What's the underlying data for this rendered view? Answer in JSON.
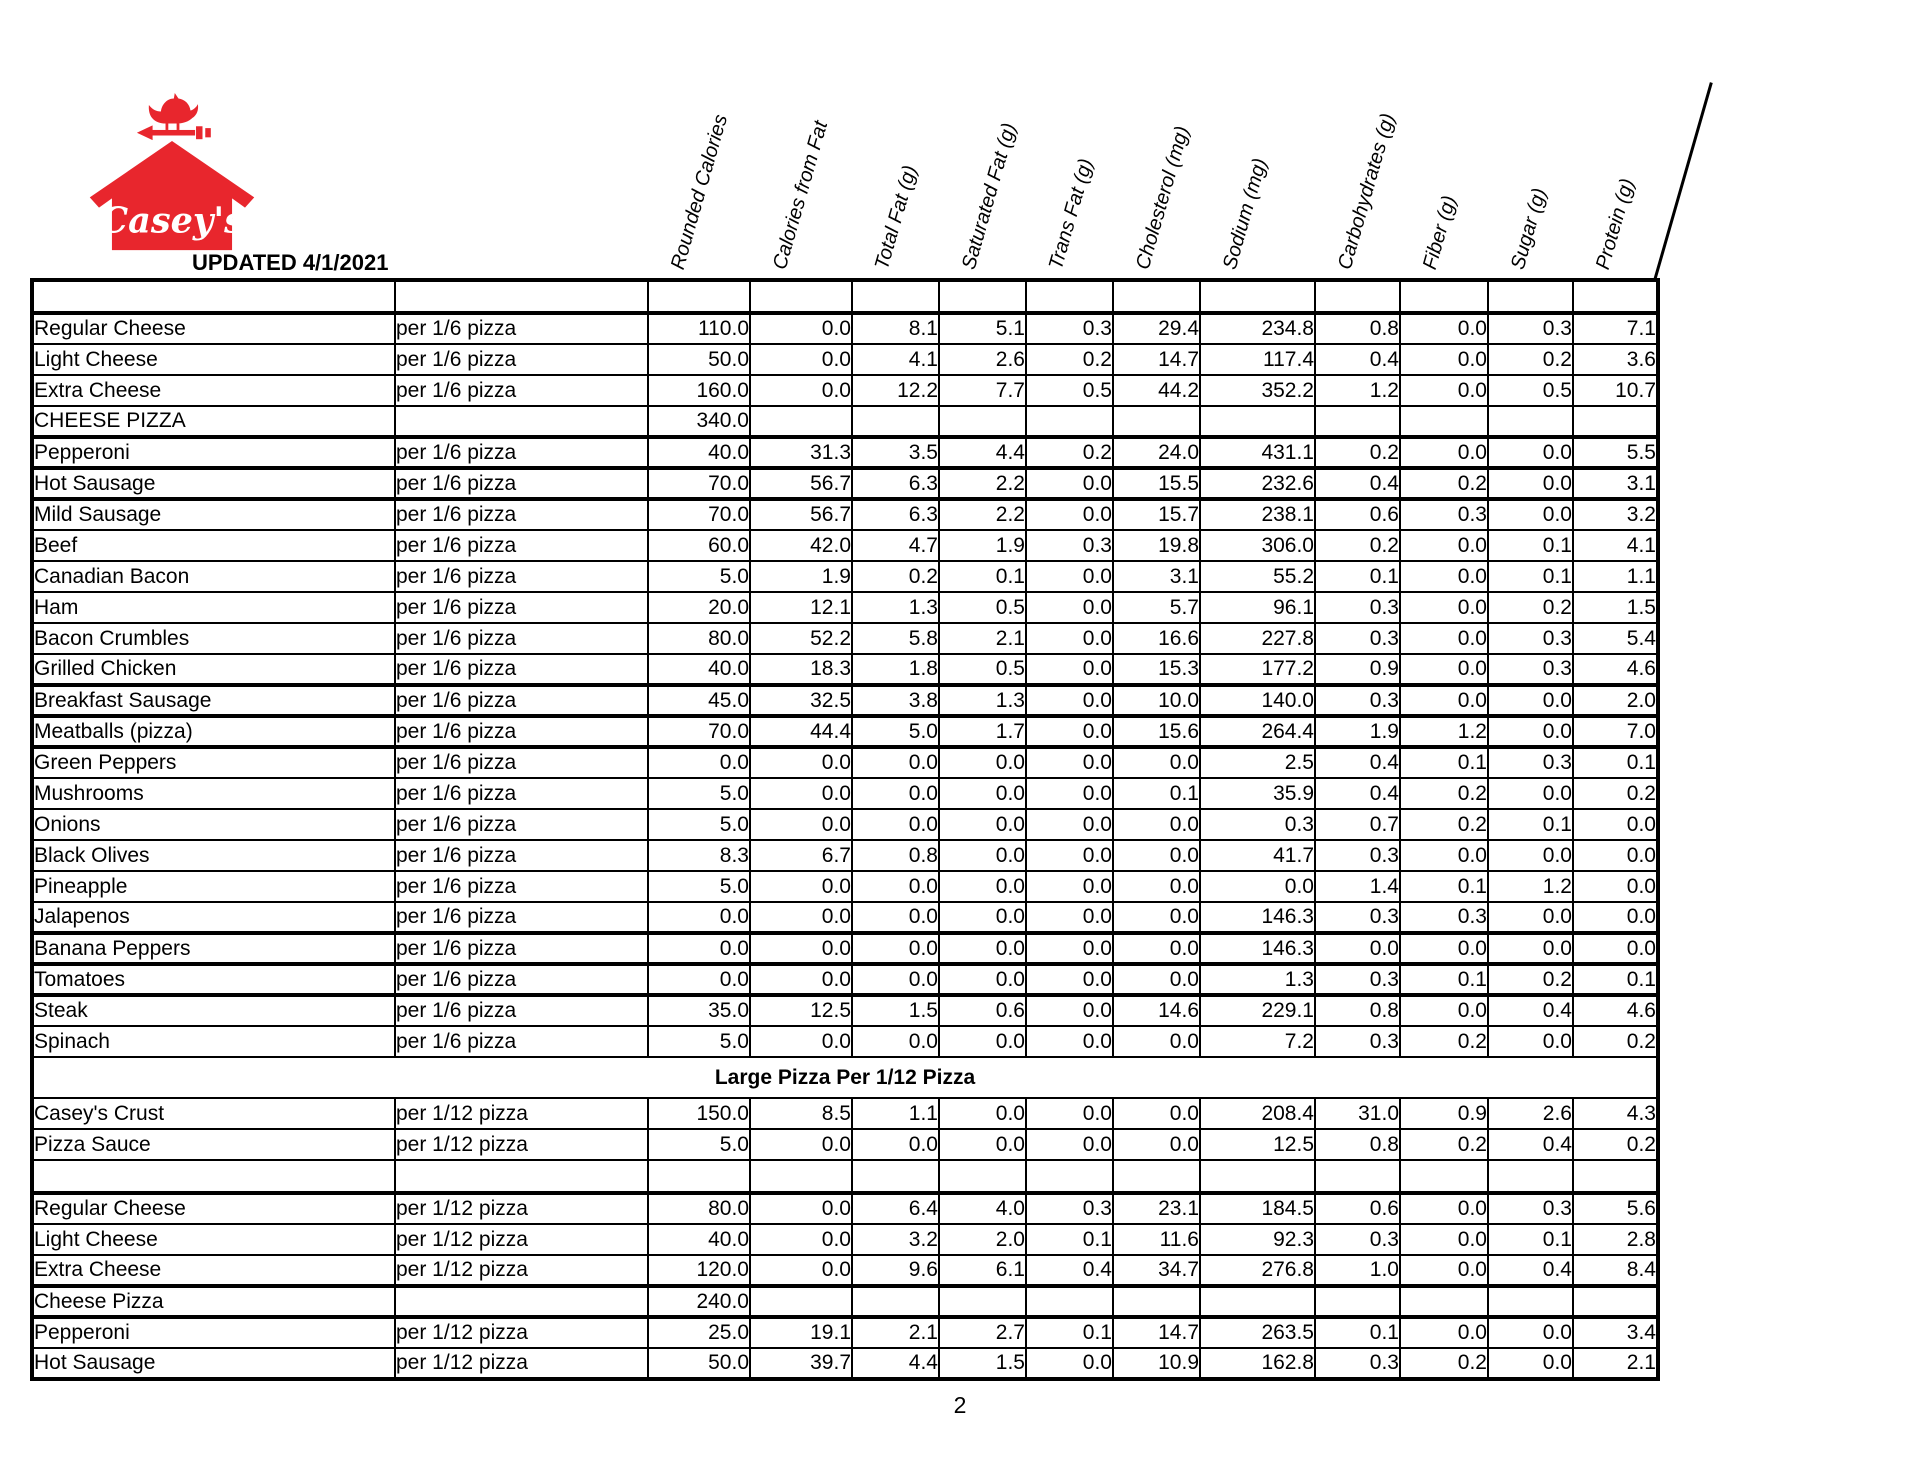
{
  "page": {
    "brand": "Casey's",
    "updated_label": "UPDATED 4/1/2021",
    "page_number": "2",
    "accent_color": "#e8262d",
    "border_color": "#000000"
  },
  "table": {
    "columns": [
      "Rounded Calories",
      "Calories from Fat",
      "Total Fat (g)",
      "Saturated Fat (g)",
      "Trans Fat (g)",
      "Cholesterol (mg)",
      "Sodium (mg)",
      "Carbohydrates (g)",
      "Fiber (g)",
      "Sugar (g)",
      "Protein (g)"
    ],
    "sections": [
      {
        "rows": [
          {
            "spacer": true,
            "name": "",
            "serving": "",
            "values": [
              "",
              "",
              "",
              "",
              "",
              "",
              "",
              "",
              "",
              "",
              ""
            ],
            "thick": true
          },
          {
            "name": "Regular Cheese",
            "serving": "per 1/6 pizza",
            "values": [
              "110.0",
              "0.0",
              "8.1",
              "5.1",
              "0.3",
              "29.4",
              "234.8",
              "0.8",
              "0.0",
              "0.3",
              "7.1"
            ]
          },
          {
            "name": "Light Cheese",
            "serving": "per 1/6 pizza",
            "values": [
              "50.0",
              "0.0",
              "4.1",
              "2.6",
              "0.2",
              "14.7",
              "117.4",
              "0.4",
              "0.0",
              "0.2",
              "3.6"
            ]
          },
          {
            "name": "Extra Cheese",
            "serving": "per 1/6 pizza",
            "values": [
              "160.0",
              "0.0",
              "12.2",
              "7.7",
              "0.5",
              "44.2",
              "352.2",
              "1.2",
              "0.0",
              "0.5",
              "10.7"
            ]
          },
          {
            "name": "CHEESE PIZZA",
            "serving": "",
            "values": [
              "340.0",
              "",
              "",
              "",
              "",
              "",
              "",
              "",
              "",
              "",
              ""
            ],
            "thick": true
          },
          {
            "name": "Pepperoni",
            "serving": "per 1/6 pizza",
            "values": [
              "40.0",
              "31.3",
              "3.5",
              "4.4",
              "0.2",
              "24.0",
              "431.1",
              "0.2",
              "0.0",
              "0.0",
              "5.5"
            ],
            "thick": true
          },
          {
            "name": "Hot Sausage",
            "serving": "per 1/6 pizza",
            "values": [
              "70.0",
              "56.7",
              "6.3",
              "2.2",
              "0.0",
              "15.5",
              "232.6",
              "0.4",
              "0.2",
              "0.0",
              "3.1"
            ],
            "thick": true
          },
          {
            "name": "Mild Sausage",
            "serving": "per 1/6 pizza",
            "values": [
              "70.0",
              "56.7",
              "6.3",
              "2.2",
              "0.0",
              "15.7",
              "238.1",
              "0.6",
              "0.3",
              "0.0",
              "3.2"
            ]
          },
          {
            "name": "Beef",
            "serving": "per 1/6 pizza",
            "values": [
              "60.0",
              "42.0",
              "4.7",
              "1.9",
              "0.3",
              "19.8",
              "306.0",
              "0.2",
              "0.0",
              "0.1",
              "4.1"
            ]
          },
          {
            "name": "Canadian Bacon",
            "serving": "per 1/6 pizza",
            "values": [
              "5.0",
              "1.9",
              "0.2",
              "0.1",
              "0.0",
              "3.1",
              "55.2",
              "0.1",
              "0.0",
              "0.1",
              "1.1"
            ]
          },
          {
            "name": "Ham",
            "serving": "per 1/6 pizza",
            "values": [
              "20.0",
              "12.1",
              "1.3",
              "0.5",
              "0.0",
              "5.7",
              "96.1",
              "0.3",
              "0.0",
              "0.2",
              "1.5"
            ]
          },
          {
            "name": "Bacon Crumbles",
            "serving": "per 1/6 pizza",
            "values": [
              "80.0",
              "52.2",
              "5.8",
              "2.1",
              "0.0",
              "16.6",
              "227.8",
              "0.3",
              "0.0",
              "0.3",
              "5.4"
            ]
          },
          {
            "name": "Grilled Chicken",
            "serving": "per 1/6 pizza",
            "values": [
              "40.0",
              "18.3",
              "1.8",
              "0.5",
              "0.0",
              "15.3",
              "177.2",
              "0.9",
              "0.0",
              "0.3",
              "4.6"
            ],
            "thick": true
          },
          {
            "name": "Breakfast Sausage",
            "serving": "per 1/6 pizza",
            "values": [
              "45.0",
              "32.5",
              "3.8",
              "1.3",
              "0.0",
              "10.0",
              "140.0",
              "0.3",
              "0.0",
              "0.0",
              "2.0"
            ],
            "thick": true
          },
          {
            "name": "Meatballs (pizza)",
            "serving": "per 1/6 pizza",
            "values": [
              "70.0",
              "44.4",
              "5.0",
              "1.7",
              "0.0",
              "15.6",
              "264.4",
              "1.9",
              "1.2",
              "0.0",
              "7.0"
            ],
            "thick": true
          },
          {
            "name": "Green Peppers",
            "serving": "per 1/6 pizza",
            "values": [
              "0.0",
              "0.0",
              "0.0",
              "0.0",
              "0.0",
              "0.0",
              "2.5",
              "0.4",
              "0.1",
              "0.3",
              "0.1"
            ]
          },
          {
            "name": "Mushrooms",
            "serving": "per 1/6 pizza",
            "values": [
              "5.0",
              "0.0",
              "0.0",
              "0.0",
              "0.0",
              "0.1",
              "35.9",
              "0.4",
              "0.2",
              "0.0",
              "0.2"
            ]
          },
          {
            "name": "Onions",
            "serving": "per 1/6 pizza",
            "values": [
              "5.0",
              "0.0",
              "0.0",
              "0.0",
              "0.0",
              "0.0",
              "0.3",
              "0.7",
              "0.2",
              "0.1",
              "0.0"
            ]
          },
          {
            "name": "Black Olives",
            "serving": "per 1/6 pizza",
            "values": [
              "8.3",
              "6.7",
              "0.8",
              "0.0",
              "0.0",
              "0.0",
              "41.7",
              "0.3",
              "0.0",
              "0.0",
              "0.0"
            ]
          },
          {
            "name": "Pineapple",
            "serving": "per 1/6 pizza",
            "values": [
              "5.0",
              "0.0",
              "0.0",
              "0.0",
              "0.0",
              "0.0",
              "0.0",
              "1.4",
              "0.1",
              "1.2",
              "0.0"
            ]
          },
          {
            "name": "Jalapenos",
            "serving": "per 1/6 pizza",
            "values": [
              "0.0",
              "0.0",
              "0.0",
              "0.0",
              "0.0",
              "0.0",
              "146.3",
              "0.3",
              "0.3",
              "0.0",
              "0.0"
            ],
            "thick": true
          },
          {
            "name": "Banana Peppers",
            "serving": "per 1/6 pizza",
            "values": [
              "0.0",
              "0.0",
              "0.0",
              "0.0",
              "0.0",
              "0.0",
              "146.3",
              "0.0",
              "0.0",
              "0.0",
              "0.0"
            ],
            "thick": true
          },
          {
            "name": "Tomatoes",
            "serving": "per 1/6 pizza",
            "values": [
              "0.0",
              "0.0",
              "0.0",
              "0.0",
              "0.0",
              "0.0",
              "1.3",
              "0.3",
              "0.1",
              "0.2",
              "0.1"
            ],
            "thick": true
          },
          {
            "name": "Steak",
            "serving": "per 1/6 pizza",
            "values": [
              "35.0",
              "12.5",
              "1.5",
              "0.6",
              "0.0",
              "14.6",
              "229.1",
              "0.8",
              "0.0",
              "0.4",
              "4.6"
            ]
          },
          {
            "name": "Spinach",
            "serving": "per 1/6 pizza",
            "values": [
              "5.0",
              "0.0",
              "0.0",
              "0.0",
              "0.0",
              "0.0",
              "7.2",
              "0.3",
              "0.2",
              "0.0",
              "0.2"
            ]
          }
        ]
      },
      {
        "header": "Large Pizza Per 1/12 Pizza",
        "rows": [
          {
            "name": "Casey's Crust",
            "serving": "per 1/12 pizza",
            "values": [
              "150.0",
              "8.5",
              "1.1",
              "0.0",
              "0.0",
              "0.0",
              "208.4",
              "31.0",
              "0.9",
              "2.6",
              "4.3"
            ]
          },
          {
            "name": "Pizza Sauce",
            "serving": "per 1/12 pizza",
            "values": [
              "5.0",
              "0.0",
              "0.0",
              "0.0",
              "0.0",
              "0.0",
              "12.5",
              "0.8",
              "0.2",
              "0.4",
              "0.2"
            ]
          },
          {
            "spacer": true,
            "name": "",
            "serving": "",
            "values": [
              "",
              "",
              "",
              "",
              "",
              "",
              "",
              "",
              "",
              "",
              ""
            ],
            "thick": true
          },
          {
            "name": "Regular Cheese",
            "serving": "per 1/12 pizza",
            "values": [
              "80.0",
              "0.0",
              "6.4",
              "4.0",
              "0.3",
              "23.1",
              "184.5",
              "0.6",
              "0.0",
              "0.3",
              "5.6"
            ]
          },
          {
            "name": "Light Cheese",
            "serving": "per 1/12 pizza",
            "values": [
              "40.0",
              "0.0",
              "3.2",
              "2.0",
              "0.1",
              "11.6",
              "92.3",
              "0.3",
              "0.0",
              "0.1",
              "2.8"
            ]
          },
          {
            "name": "Extra Cheese",
            "serving": "per 1/12 pizza",
            "values": [
              "120.0",
              "0.0",
              "9.6",
              "6.1",
              "0.4",
              "34.7",
              "276.8",
              "1.0",
              "0.0",
              "0.4",
              "8.4"
            ],
            "thick": true
          },
          {
            "name": "Cheese Pizza",
            "serving": "",
            "values": [
              "240.0",
              "",
              "",
              "",
              "",
              "",
              "",
              "",
              "",
              "",
              ""
            ],
            "thick": true
          },
          {
            "name": "Pepperoni",
            "serving": "per 1/12 pizza",
            "values": [
              "25.0",
              "19.1",
              "2.1",
              "2.7",
              "0.1",
              "14.7",
              "263.5",
              "0.1",
              "0.0",
              "0.0",
              "3.4"
            ]
          },
          {
            "name": "Hot Sausage",
            "serving": "per 1/12 pizza",
            "values": [
              "50.0",
              "39.7",
              "4.4",
              "1.5",
              "0.0",
              "10.9",
              "162.8",
              "0.3",
              "0.2",
              "0.0",
              "2.1"
            ]
          }
        ]
      }
    ]
  }
}
